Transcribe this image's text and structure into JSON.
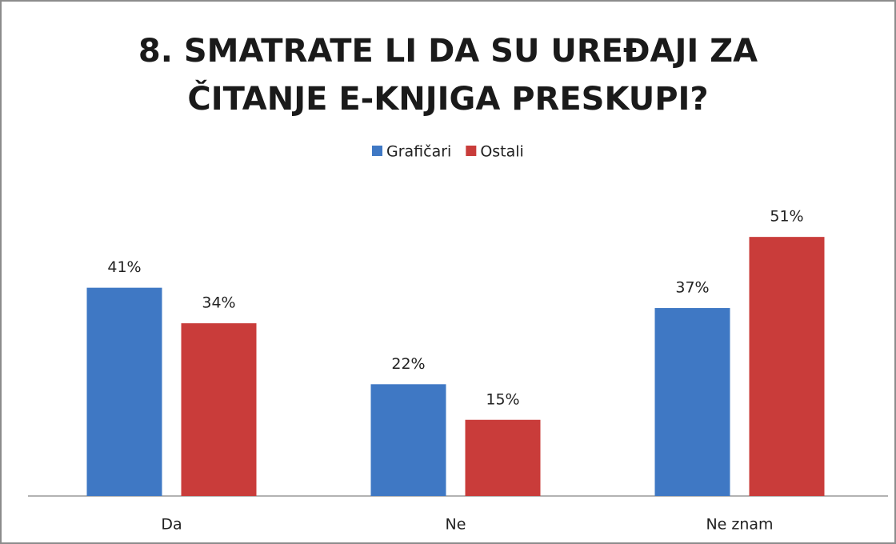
{
  "chart_data": {
    "type": "bar",
    "title": "8. SMATRATE LI DA SU UREĐAJI ZA ČITANJE E-KNJIGA PRESKUPI?",
    "categories": [
      "Da",
      "Ne",
      "Ne znam"
    ],
    "series": [
      {
        "name": "Grafičari",
        "color": "#3f78c4",
        "values": [
          41,
          22,
          37
        ],
        "value_labels": [
          "41%",
          "22%",
          "37%"
        ]
      },
      {
        "name": "Ostali",
        "color": "#c93c3a",
        "values": [
          34,
          15,
          51
        ],
        "value_labels": [
          "34%",
          "15%",
          "51%"
        ]
      }
    ],
    "legend": "top"
  }
}
